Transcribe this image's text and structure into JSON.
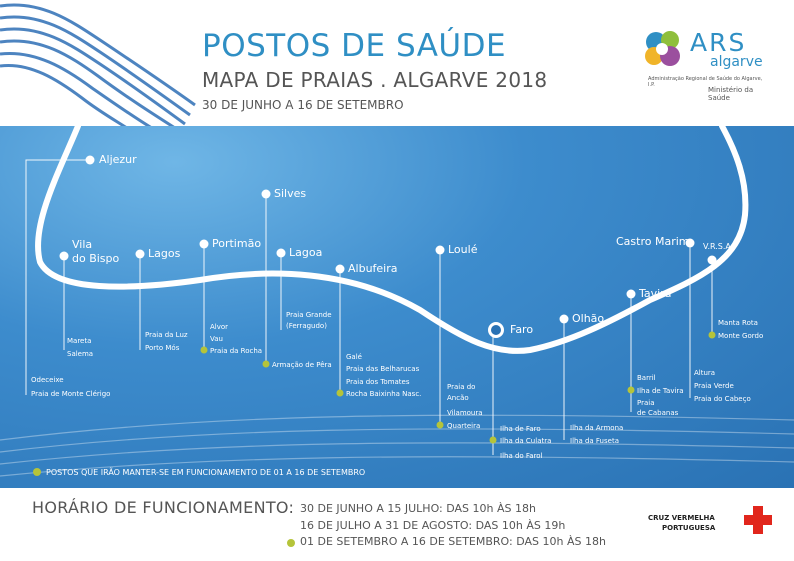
{
  "header": {
    "title": "POSTOS DE SAÚDE",
    "subtitle": "MAPA DE PRAIAS  .  ALGARVE 2018",
    "dates": "30 DE JUNHO A 16 DE SETEMBRO"
  },
  "logo": {
    "ars": "ARS",
    "algarve": "algarve",
    "sub": "Administração Regional de Saúde do Algarve, I.P.",
    "ministry": "Ministério da Saúde"
  },
  "towns": {
    "aljezur": "Aljezur",
    "vila_bispo": "Vila\ndo Bispo",
    "lagos": "Lagos",
    "portimao": "Portimão",
    "silves": "Silves",
    "lagoa": "Lagoa",
    "albufeira": "Albufeira",
    "loule": "Loulé",
    "faro": "Faro",
    "olhao": "Olhão",
    "tavira": "Tavira",
    "castro_marim": "Castro Marim",
    "vrsa": "V.R.S.A."
  },
  "beaches": {
    "aljezur": [
      "Odeceixe",
      "Praia de Monte Clérigo"
    ],
    "vila_bispo": [
      "Mareta",
      "Salema"
    ],
    "lagos": [
      "Praia da Luz",
      "Porto Mós"
    ],
    "portimao": [
      "Alvor",
      "Vau",
      "Praia da Rocha"
    ],
    "silves": [
      "Armação de Pêra"
    ],
    "lagoa": [
      "Praia Grande",
      "(Ferragudo)"
    ],
    "albufeira": [
      "Galé",
      "Praia das Belharucas",
      "Praia dos Tomates",
      "Rocha Baixinha Nasc."
    ],
    "loule": [
      "Praia do",
      "Ancão",
      "Vilamoura",
      "Quarteira"
    ],
    "faro": [
      "Ilha de Faro",
      "Ilha da Culatra",
      "Ilha do Farol"
    ],
    "olhao": [
      "Ilha da Armona",
      "Ilha da Fuseta"
    ],
    "tavira": [
      "Barril",
      "Ilha de Tavira",
      "Praia",
      "de Cabanas"
    ],
    "castro_marim": [
      "Altura",
      "Praia Verde",
      "Praia do Cabeço"
    ],
    "vrsa": [
      "Manta Rota",
      "Monte Gordo"
    ]
  },
  "legend": "POSTOS QUE IRÃO MANTER-SE EM FUNCIONAMENTO DE 01 A 16 DE SETEMBRO",
  "hours": {
    "title": "HORÁRIO DE FUNCIONAMENTO:",
    "line1": "30 DE JUNHO A 15 JULHO: DAS 10h ÀS 18h",
    "line2": "16 DE JULHO A 31 DE AGOSTO: DAS 10h ÀS 19h",
    "line3": "01 DE SETEMBRO A 16 DE SETEMBRO: DAS 10h ÀS 18h"
  },
  "partner": {
    "line1": "CRUZ VERMELHA",
    "line2": "PORTUGUESA"
  },
  "colors": {
    "title_blue": "#2f8fc4",
    "sea_blue": "#3d8ccd",
    "september_dot": "#b5c43a",
    "cross_red": "#e1261c"
  }
}
